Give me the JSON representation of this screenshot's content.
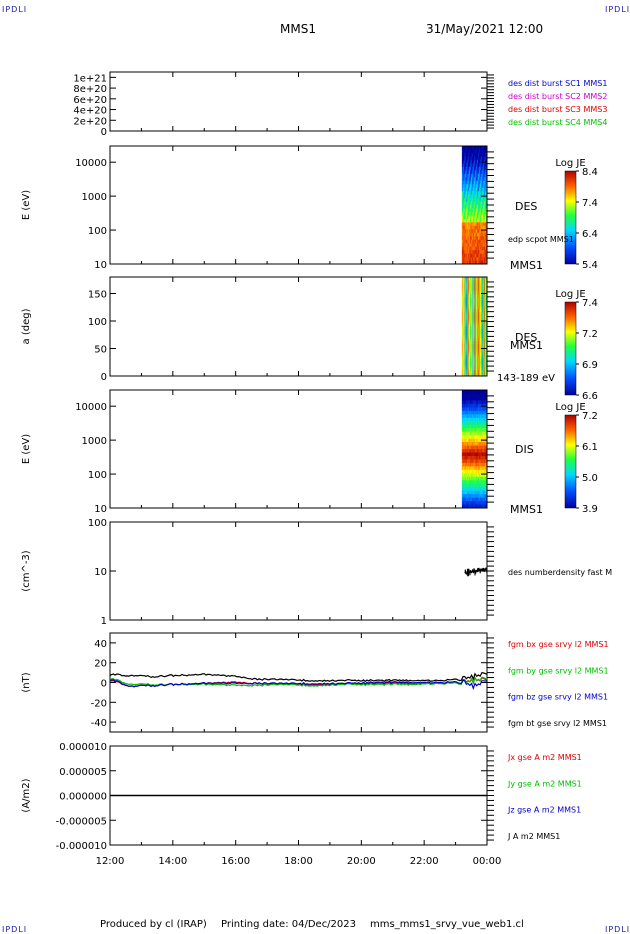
{
  "header": {
    "corner_label": "IPDLI",
    "spacecraft": "MMS1",
    "date_time": "31/May/2021 12:00"
  },
  "footer": {
    "produced_by": "Produced by cl (IRAP)",
    "printing_date": "Printing date: 04/Dec/2023",
    "file_name": "mms_mms1_srvy_vue_web1.cl"
  },
  "time_axis": {
    "ticks": [
      "12:00",
      "14:00",
      "16:00",
      "18:00",
      "20:00",
      "22:00",
      "00:00"
    ]
  },
  "colors": {
    "red": "#dd0000",
    "green": "#00c000",
    "blue": "#0000cc",
    "magenta": "#cc00cc",
    "black": "#000000"
  },
  "chart_data": [
    {
      "id": "burst",
      "type": "line",
      "ylabel": "",
      "ylim": [
        0,
        1.1e+21
      ],
      "yticks": [
        {
          "v": 0,
          "label": "0"
        },
        {
          "v": 2e+20,
          "label": "2e+20"
        },
        {
          "v": 4e+20,
          "label": "4e+20"
        },
        {
          "v": 6e+20,
          "label": "6e+20"
        },
        {
          "v": 8e+20,
          "label": "8e+20"
        },
        {
          "v": 1e+21,
          "label": "1e+21"
        }
      ],
      "legend": [
        {
          "label": "des dist burst SC1 MMS1",
          "color": "#0000cc"
        },
        {
          "label": "des dist burst SC2 MMS2",
          "color": "#cc00cc"
        },
        {
          "label": "des dist burst SC3 MMS3",
          "color": "#dd0000"
        },
        {
          "label": "des dist burst SC4 MMS4",
          "color": "#00c000"
        }
      ],
      "series_note": "dashed zero line",
      "value": 0
    },
    {
      "id": "des_energy",
      "type": "heatmap",
      "ylabel": "E (eV)",
      "yscale": "log",
      "ylim": [
        10,
        30000
      ],
      "yticks": [
        {
          "v": 10,
          "label": "10"
        },
        {
          "v": 100,
          "label": "100"
        },
        {
          "v": 1000,
          "label": "1000"
        },
        {
          "v": 10000,
          "label": "10000"
        }
      ],
      "data_window_hours": [
        23.2,
        24.0
      ],
      "label": "DES",
      "overlay_label": "edp scpot MMS1",
      "sub_label": "MMS1",
      "colorbar": {
        "title": "Log JE",
        "ticks": [
          "8.4",
          "7.4",
          "6.4",
          "5.4"
        ],
        "range": [
          5.4,
          8.4
        ]
      }
    },
    {
      "id": "des_pitch",
      "type": "heatmap",
      "ylabel": "a (deg)",
      "ylim": [
        0,
        180
      ],
      "yticks": [
        {
          "v": 0,
          "label": "0"
        },
        {
          "v": 50,
          "label": "50"
        },
        {
          "v": 100,
          "label": "100"
        },
        {
          "v": 150,
          "label": "150"
        }
      ],
      "data_window_hours": [
        23.2,
        24.0
      ],
      "label": "DES",
      "sub_label": "MMS1",
      "energy_range": "143-189 eV",
      "colorbar": {
        "title": "Log JE",
        "ticks": [
          "7.4",
          "7.2",
          "6.9",
          "6.6"
        ],
        "range": [
          6.6,
          7.4
        ]
      }
    },
    {
      "id": "dis_energy",
      "type": "heatmap",
      "ylabel": "E (eV)",
      "yscale": "log",
      "ylim": [
        10,
        30000
      ],
      "yticks": [
        {
          "v": 10,
          "label": "10"
        },
        {
          "v": 100,
          "label": "100"
        },
        {
          "v": 1000,
          "label": "1000"
        },
        {
          "v": 10000,
          "label": "10000"
        }
      ],
      "data_window_hours": [
        23.2,
        24.0
      ],
      "label": "DIS",
      "sub_label": "MMS1",
      "colorbar": {
        "title": "Log JE",
        "ticks": [
          "7.2",
          "6.1",
          "5.0",
          "3.9"
        ],
        "range": [
          3.9,
          7.2
        ]
      }
    },
    {
      "id": "density",
      "type": "line",
      "ylabel": "(cm^-3)",
      "yscale": "log",
      "ylim": [
        1,
        100
      ],
      "yticks": [
        {
          "v": 1,
          "label": "1"
        },
        {
          "v": 10,
          "label": "10"
        },
        {
          "v": 100,
          "label": "100"
        }
      ],
      "legend": [
        {
          "label": "des numberdensity fast M",
          "color": "#000000"
        }
      ],
      "data_window_hours": [
        23.3,
        24.0
      ],
      "typical_value": 9
    },
    {
      "id": "fgm",
      "type": "line",
      "ylabel": "(nT)",
      "ylim": [
        -50,
        50
      ],
      "yticks": [
        {
          "v": -40,
          "label": "-40"
        },
        {
          "v": -20,
          "label": "-20"
        },
        {
          "v": 0,
          "label": "0"
        },
        {
          "v": 20,
          "label": "20"
        },
        {
          "v": 40,
          "label": "40"
        }
      ],
      "legend": [
        {
          "label": "fgm bx gse srvy l2 MMS1",
          "color": "#dd0000"
        },
        {
          "label": "fgm by gse srvy l2 MMS1",
          "color": "#00c000"
        },
        {
          "label": "fgm bz gse srvy l2 MMS1",
          "color": "#0000cc"
        },
        {
          "label": "fgm bt gse srvy l2 MMS1",
          "color": "#000000"
        }
      ],
      "series": [
        {
          "name": "bx",
          "color": "#dd0000",
          "x": [
            12,
            12.7,
            13.3,
            14,
            15,
            16,
            16.7,
            17.5,
            18.5,
            19.5,
            20.5,
            21.5,
            22.5,
            23.2,
            23.6,
            24
          ],
          "y": [
            2,
            -4,
            -3,
            -2,
            -1,
            0,
            -1,
            -2,
            -2,
            -1,
            -1,
            -1,
            -1,
            0,
            2,
            3
          ]
        },
        {
          "name": "by",
          "color": "#00c000",
          "x": [
            12,
            12.7,
            13.3,
            14,
            15,
            16,
            16.7,
            17.5,
            18.5,
            19.5,
            20.5,
            21.5,
            22.5,
            23.2,
            23.6,
            24
          ],
          "y": [
            4,
            -2,
            -2,
            -2,
            -2,
            -3,
            -3,
            -2,
            -3,
            -2,
            -2,
            -2,
            -1,
            -1,
            2,
            4
          ]
        },
        {
          "name": "bz",
          "color": "#0000cc",
          "x": [
            12,
            12.7,
            13.3,
            14,
            15,
            16,
            16.7,
            17.5,
            18.5,
            19.5,
            20.5,
            21.5,
            22.5,
            23.2,
            23.6,
            24
          ],
          "y": [
            3,
            -4,
            -3,
            -2,
            -1,
            -1,
            -1,
            -1,
            -1,
            -1,
            0,
            0,
            0,
            0,
            -4,
            2
          ]
        },
        {
          "name": "bt",
          "color": "#000000",
          "x": [
            12,
            12.7,
            13.3,
            14,
            15,
            16,
            16.7,
            17.5,
            18.5,
            19.5,
            20.5,
            21.5,
            22.5,
            23.2,
            23.6,
            24
          ],
          "y": [
            8,
            7,
            6,
            7,
            8,
            6,
            3,
            3,
            2,
            2,
            2,
            2,
            2,
            3,
            6,
            9
          ]
        }
      ]
    },
    {
      "id": "current",
      "type": "line",
      "ylabel": "(A/m2)",
      "ylim": [
        -1e-05,
        1e-05
      ],
      "yticks": [
        {
          "v": -1e-05,
          "label": "-0.000010"
        },
        {
          "v": -5e-06,
          "label": "-0.000005"
        },
        {
          "v": 0,
          "label": "0.000000"
        },
        {
          "v": 5e-06,
          "label": "0.000005"
        },
        {
          "v": 1e-05,
          "label": "0.000010"
        }
      ],
      "legend": [
        {
          "label": "Jx gse A m2 MMS1",
          "color": "#dd0000"
        },
        {
          "label": "Jy gse A m2 MMS1",
          "color": "#00c000"
        },
        {
          "label": "Jz gse A m2 MMS1",
          "color": "#0000cc"
        },
        {
          "label": "J A m2 MMS1",
          "color": "#000000"
        }
      ],
      "value": 0
    }
  ]
}
